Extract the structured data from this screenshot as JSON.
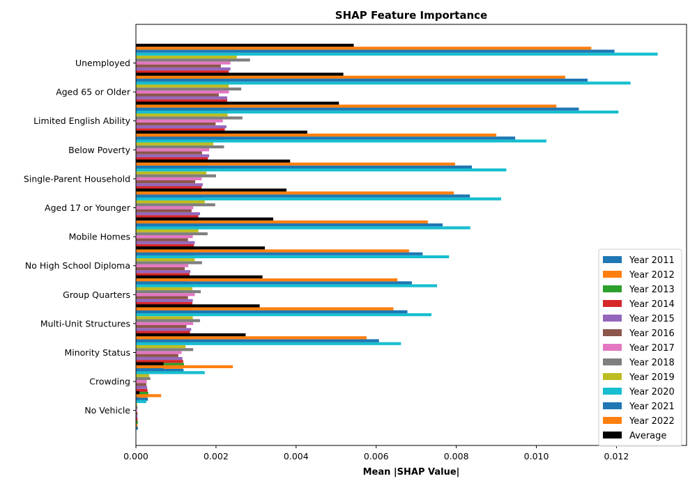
{
  "chart_data": {
    "type": "bar",
    "orientation": "horizontal",
    "title": "SHAP Feature Importance",
    "xlabel": "Mean |SHAP Value|",
    "ylabel": "",
    "xlim": [
      0,
      0.01375
    ],
    "xticks": [
      "0.000",
      "0.002",
      "0.004",
      "0.006",
      "0.008",
      "0.010",
      "0.012"
    ],
    "xtick_values": [
      0,
      0.002,
      0.004,
      0.006,
      0.008,
      0.01,
      0.012
    ],
    "grid": false,
    "legend_position": "lower right",
    "categories": [
      "Unemployed",
      "Aged 65 or Older",
      "Limited English Ability",
      "Below Poverty",
      "Single-Parent Household",
      "Aged 17 or Younger",
      "Mobile Homes",
      "No High School Diploma",
      "Group Quarters",
      "Multi-Unit Structures",
      "Minority Status",
      "Crowding",
      "No Vehicle"
    ],
    "series": [
      {
        "name": "Year 2011",
        "color": "#1f77b4",
        "values": [
          0.00234,
          0.00229,
          0.00223,
          0.00183,
          0.00165,
          0.00157,
          0.00146,
          0.00135,
          0.00142,
          0.00136,
          0.00119,
          0.0003,
          5e-05
        ]
      },
      {
        "name": "Year 2012",
        "color": "#ff7f0e",
        "values": [
          0.00233,
          0.00226,
          0.00221,
          0.00181,
          0.00163,
          0.00155,
          0.00144,
          0.00133,
          0.0014,
          0.00134,
          0.00117,
          0.00029,
          4e-05
        ]
      },
      {
        "name": "Year 2013",
        "color": "#2ca02c",
        "values": [
          0.00235,
          0.0023,
          0.00224,
          0.00182,
          0.00166,
          0.00158,
          0.00147,
          0.00136,
          0.00143,
          0.00137,
          0.0012,
          0.00031,
          5e-05
        ]
      },
      {
        "name": "Year 2014",
        "color": "#d62728",
        "values": [
          0.00232,
          0.00228,
          0.00222,
          0.0018,
          0.00164,
          0.00156,
          0.00145,
          0.00134,
          0.00141,
          0.00135,
          0.00118,
          0.00029,
          4e-05
        ]
      },
      {
        "name": "Year 2015",
        "color": "#9467bd",
        "values": [
          0.00236,
          0.00228,
          0.00226,
          0.00183,
          0.00167,
          0.0016,
          0.00147,
          0.00136,
          0.00142,
          0.00138,
          0.00116,
          0.00028,
          4e-05
        ]
      },
      {
        "name": "Year 2016",
        "color": "#8c564b",
        "values": [
          0.00212,
          0.00207,
          0.00199,
          0.00165,
          0.00148,
          0.00139,
          0.0013,
          0.00122,
          0.0013,
          0.00126,
          0.00106,
          0.00026,
          4e-05
        ]
      },
      {
        "name": "Year 2017",
        "color": "#e377c2",
        "values": [
          0.00236,
          0.00232,
          0.00217,
          0.00183,
          0.00164,
          0.00143,
          0.00142,
          0.00131,
          0.00147,
          0.00143,
          0.00114,
          0.00027,
          3e-05
        ]
      },
      {
        "name": "Year 2018",
        "color": "#7f7f7f",
        "values": [
          0.00285,
          0.00263,
          0.00266,
          0.0022,
          0.002,
          0.00198,
          0.00179,
          0.00165,
          0.00162,
          0.0016,
          0.00143,
          0.00036,
          4e-05
        ]
      },
      {
        "name": "Year 2019",
        "color": "#bcbd22",
        "values": [
          0.00252,
          0.00232,
          0.00229,
          0.00193,
          0.00176,
          0.00172,
          0.00156,
          0.00147,
          0.00141,
          0.00142,
          0.00124,
          0.00033,
          3e-05
        ]
      },
      {
        "name": "Year 2020",
        "color": "#17becf",
        "values": [
          0.01303,
          0.01235,
          0.01205,
          0.01025,
          0.00925,
          0.00912,
          0.00835,
          0.00782,
          0.00752,
          0.00738,
          0.00662,
          0.00172,
          0.00026
        ]
      },
      {
        "name": "Year 2021",
        "color": "#1f77b4",
        "values": [
          0.01195,
          0.01128,
          0.01106,
          0.00947,
          0.00839,
          0.00834,
          0.00766,
          0.00716,
          0.00689,
          0.00678,
          0.00607,
          0.00069,
          8e-05
        ]
      },
      {
        "name": "Year 2022",
        "color": "#ff7f0e",
        "values": [
          0.01137,
          0.01072,
          0.0105,
          0.009,
          0.00797,
          0.00794,
          0.00729,
          0.00682,
          0.00653,
          0.00643,
          0.00576,
          0.00242,
          0.00063
        ]
      },
      {
        "name": "Average",
        "color": "#000000",
        "values": [
          0.00544,
          0.00518,
          0.00507,
          0.00428,
          0.00385,
          0.00376,
          0.00343,
          0.00322,
          0.00316,
          0.00309,
          0.00274,
          0.00069,
          9e-05
        ]
      }
    ]
  }
}
